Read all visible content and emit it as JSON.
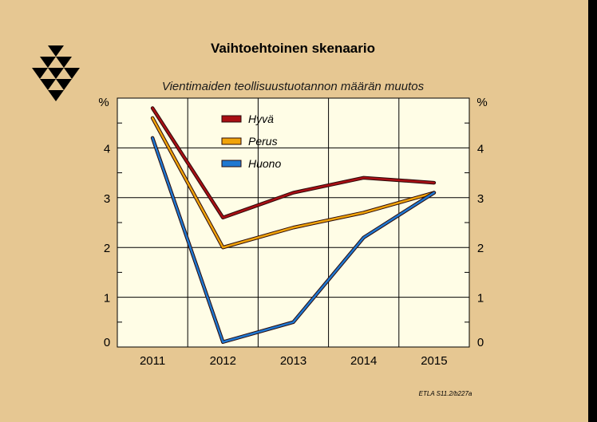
{
  "chart_data": {
    "type": "line",
    "title": "Vaihtoehtoinen skenaario",
    "subtitle": "Vientimaiden teollisuustuotannon määrän muutos",
    "ylabel_left": "%",
    "ylabel_right": "%",
    "categories": [
      "2011",
      "2012",
      "2013",
      "2014",
      "2015"
    ],
    "ylim": [
      0,
      5
    ],
    "yticks": [
      0,
      1,
      2,
      3,
      4
    ],
    "grid": true,
    "legend_position": "top-center",
    "series": [
      {
        "name": "Hyvä",
        "color": "#a80f14",
        "values": [
          4.8,
          2.6,
          3.1,
          3.4,
          3.3
        ]
      },
      {
        "name": "Perus",
        "color": "#f0a30a",
        "values": [
          4.6,
          2.0,
          2.4,
          2.7,
          3.1
        ]
      },
      {
        "name": "Huono",
        "color": "#1f78d1",
        "values": [
          4.2,
          0.1,
          0.5,
          2.2,
          3.1
        ]
      }
    ],
    "source_note": "ETLA S11.2/b227a"
  },
  "logo": {
    "icon": "etla-triangle-logo"
  },
  "colors": {
    "background": "#e6c792",
    "plot_area": "#fffde6",
    "grid": "#000000"
  }
}
